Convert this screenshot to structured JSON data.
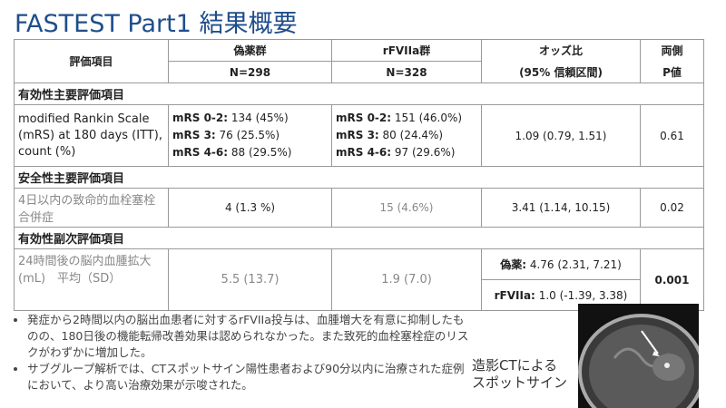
{
  "title": "FASTEST Part1 結果概要",
  "table": {
    "header": [
      [
        "評価項目"
      ],
      [
        "偽薬群",
        "N=298"
      ],
      [
        "rFVIIa群",
        "N=328"
      ],
      [
        "オッズ比",
        "(95% 信頼区間)"
      ],
      [
        "両側",
        "P値"
      ]
    ],
    "sections": [
      {
        "heading": "有効性主要評価項目",
        "item": "modified Rankin Scale (mRS) at 180 days (ITT), count (%)",
        "placebo": [
          {
            "label": "mRS 0-2:",
            "value": "134 (45%)"
          },
          {
            "label": "mRS 3:",
            "value": "76 (25.5%)"
          },
          {
            "label": "mRS 4-6:",
            "value": "88 (29.5%)"
          }
        ],
        "rfviia": [
          {
            "label": "mRS 0-2:",
            "value": "151 (46.0%)"
          },
          {
            "label": "mRS 3:",
            "value": "80 (24.4%)"
          },
          {
            "label": "mRS 4-6:",
            "value": "97 (29.6%)"
          }
        ],
        "odds": "1.09 (0.79, 1.51)",
        "p": "0.61"
      },
      {
        "heading": "安全性主要評価項目",
        "item": "4日以内の致命的血栓塞栓合併症",
        "placebo": "4 (1.3 %)",
        "rfviia": "15 (4.6%)",
        "odds": "3.41 (1.14, 10.15)",
        "p": "0.02"
      },
      {
        "heading": "有効性副次評価項目",
        "item": "24時間後の脳内血腫拡大(mL)　平均（SD）",
        "placebo": "5.5 (13.7)",
        "rfviia": "1.9 (7.0)",
        "odds": [
          {
            "label": "偽薬:",
            "value": "4.76 (2.31, 7.21)"
          },
          {
            "label": "rFVIIa:",
            "value": "1.0 (-1.39, 3.38)"
          }
        ],
        "p": "0.001"
      }
    ]
  },
  "bullets": [
    "発症から2時間以内の脳出血患者に対するrFVIIa投与は、血腫増大を有意に抑制したものの、180日後の機能転帰改善効果は認められなかった。また致死的血栓塞栓症のリスクがわずかに増加した。",
    "サブグループ解析では、CTスポットサイン陽性患者および90分以内に治療された症例において、より高い治療効果が示唆された。"
  ],
  "caption": [
    "造影CTによる",
    "スポットサイン"
  ]
}
